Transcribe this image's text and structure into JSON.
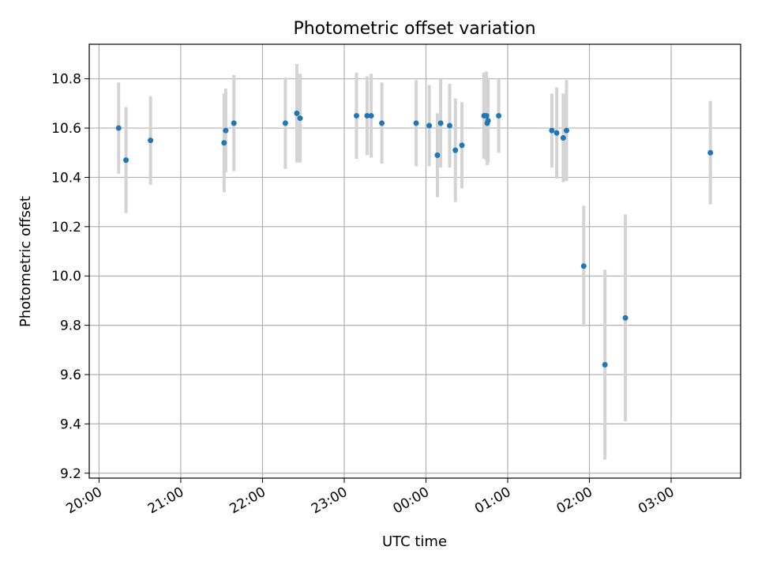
{
  "chart_data": {
    "type": "scatter",
    "title": "Photometric offset variation",
    "xlabel": "UTC time",
    "ylabel": "Photometric offset",
    "x_ticks": [
      "20:00",
      "21:00",
      "22:00",
      "23:00",
      "00:00",
      "01:00",
      "02:00",
      "03:00"
    ],
    "y_ticks": [
      "9.2",
      "9.4",
      "9.6",
      "9.8",
      "10.0",
      "10.2",
      "10.4",
      "10.6",
      "10.8"
    ],
    "x_unit": "hours since 20:00 UTC",
    "xlim": [
      -0.12,
      7.85
    ],
    "ylim": [
      9.18,
      10.94
    ],
    "grid": true,
    "error_bars": true,
    "colors": {
      "point": "#1f77b4",
      "errorbar": "#d3d3d3"
    },
    "points": [
      {
        "x": 0.24,
        "y": 10.6,
        "err": 0.185
      },
      {
        "x": 0.33,
        "y": 10.47,
        "err": 0.215
      },
      {
        "x": 0.63,
        "y": 10.55,
        "err": 0.18
      },
      {
        "x": 1.53,
        "y": 10.54,
        "err": 0.2
      },
      {
        "x": 1.55,
        "y": 10.59,
        "err": 0.17
      },
      {
        "x": 1.65,
        "y": 10.62,
        "err": 0.195
      },
      {
        "x": 2.28,
        "y": 10.62,
        "err": 0.185
      },
      {
        "x": 2.42,
        "y": 10.66,
        "err": 0.2
      },
      {
        "x": 2.46,
        "y": 10.64,
        "err": 0.18
      },
      {
        "x": 3.15,
        "y": 10.65,
        "err": 0.175
      },
      {
        "x": 3.28,
        "y": 10.65,
        "err": 0.16
      },
      {
        "x": 3.33,
        "y": 10.65,
        "err": 0.17
      },
      {
        "x": 3.46,
        "y": 10.62,
        "err": 0.165
      },
      {
        "x": 3.88,
        "y": 10.62,
        "err": 0.175
      },
      {
        "x": 4.04,
        "y": 10.61,
        "err": 0.165
      },
      {
        "x": 4.14,
        "y": 10.49,
        "err": 0.17
      },
      {
        "x": 4.18,
        "y": 10.62,
        "err": 0.18
      },
      {
        "x": 4.29,
        "y": 10.61,
        "err": 0.17
      },
      {
        "x": 4.36,
        "y": 10.51,
        "err": 0.21
      },
      {
        "x": 4.44,
        "y": 10.53,
        "err": 0.175
      },
      {
        "x": 4.71,
        "y": 10.65,
        "err": 0.175
      },
      {
        "x": 4.74,
        "y": 10.65,
        "err": 0.18
      },
      {
        "x": 4.75,
        "y": 10.62,
        "err": 0.17
      },
      {
        "x": 4.76,
        "y": 10.63,
        "err": 0.17
      },
      {
        "x": 4.89,
        "y": 10.65,
        "err": 0.15
      },
      {
        "x": 5.54,
        "y": 10.59,
        "err": 0.15
      },
      {
        "x": 5.6,
        "y": 10.58,
        "err": 0.185
      },
      {
        "x": 5.68,
        "y": 10.56,
        "err": 0.18
      },
      {
        "x": 5.72,
        "y": 10.59,
        "err": 0.205
      },
      {
        "x": 5.93,
        "y": 10.04,
        "err": 0.245
      },
      {
        "x": 6.19,
        "y": 9.64,
        "err": 0.385
      },
      {
        "x": 6.44,
        "y": 9.83,
        "err": 0.42
      },
      {
        "x": 7.48,
        "y": 10.5,
        "err": 0.21
      }
    ]
  }
}
